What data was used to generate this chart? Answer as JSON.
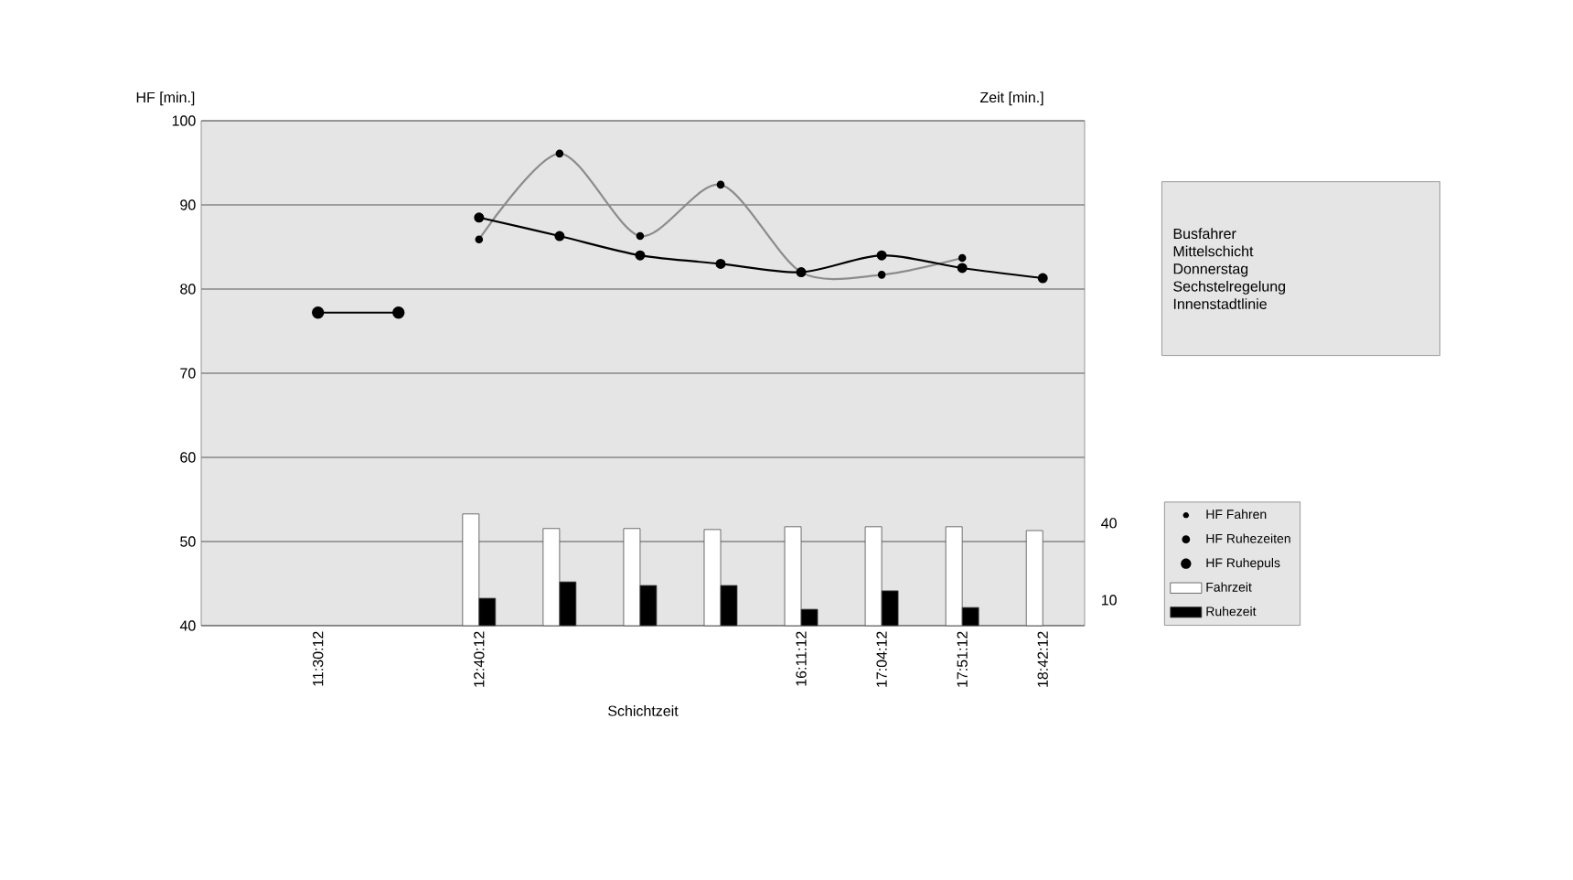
{
  "chart_data": {
    "type": "line",
    "ylabel": "HF [min.]",
    "y2label": "Zeit [min.]",
    "xlabel": "Schichtzeit",
    "categories": [
      "11:30:12",
      null,
      "12:40:12",
      null,
      null,
      null,
      "16:11:12",
      "17:04:12",
      "17:51:12",
      "18:42:12"
    ],
    "series": [
      {
        "name": "HF Fahren",
        "color": "#8c8c8c",
        "values": [
          null,
          null,
          85.9,
          96.1,
          86.3,
          92.4,
          82.0,
          81.7,
          83.7,
          null
        ]
      },
      {
        "name": "HF Ruhezeiten",
        "color": "#000000",
        "values": [
          null,
          null,
          88.5,
          86.3,
          84.0,
          83.0,
          82.0,
          84.0,
          82.5,
          81.3
        ]
      },
      {
        "name": "HF Ruhepuls",
        "color": "#000000",
        "values": [
          77.2,
          77.2,
          null,
          null,
          null,
          null,
          null,
          null,
          null,
          null
        ]
      },
      {
        "name": "Fahrzeit",
        "type": "bar",
        "axis": "y2",
        "color": "#ffffff",
        "values": [
          null,
          null,
          43.6,
          37.9,
          37.9,
          37.5,
          38.6,
          38.6,
          38.6,
          37.1
        ]
      },
      {
        "name": "Ruhezeit",
        "type": "bar",
        "axis": "y2",
        "color": "#000000",
        "values": [
          null,
          null,
          10.7,
          17.1,
          15.7,
          15.7,
          6.4,
          13.6,
          7.1,
          null
        ]
      }
    ],
    "ylim": [
      40,
      100
    ],
    "yticks": [
      40,
      50,
      60,
      70,
      80,
      90,
      100
    ],
    "y2lim": [
      0,
      197
    ],
    "y2ticks": [
      10,
      40
    ],
    "grid": "y",
    "legend": "right",
    "marker": "circle",
    "line_style": "solid",
    "annotations": [
      "Busfahrer",
      "Mittelschicht",
      "Donnerstag",
      "Sechstelregelung",
      "Innenstadtlinie"
    ]
  }
}
